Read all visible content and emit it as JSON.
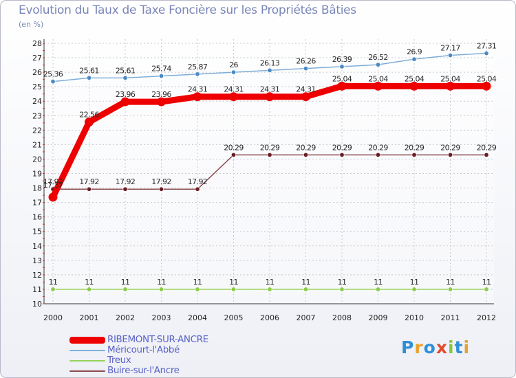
{
  "title": "Evolution du Taux de Taxe Foncière sur les Propriétés Bâties",
  "unit": "(en %)",
  "logo": {
    "letters": [
      "P",
      "r",
      "o",
      "x",
      "i",
      "t",
      "i"
    ],
    "colors": [
      "#2e8fd8",
      "#e9a12a",
      "#2e8fd8",
      "#e24a2c",
      "#8bc53f",
      "#2e8fd8",
      "#e9a12a"
    ]
  },
  "chart_data": {
    "type": "line",
    "title": "Evolution du Taux de Taxe Foncière sur les Propriétés Bâties",
    "ylabel": "(en %)",
    "xlabel": "",
    "categories": [
      "2000",
      "2001",
      "2002",
      "2003",
      "2004",
      "2005",
      "2006",
      "2007",
      "2008",
      "2009",
      "2010",
      "2011",
      "2012"
    ],
    "ylim": [
      10,
      28
    ],
    "yticks": [
      "10",
      "11",
      "12",
      "13",
      "14",
      "15",
      "16",
      "17",
      "18",
      "19",
      "20",
      "21",
      "22",
      "23",
      "24",
      "25",
      "26",
      "27",
      "28"
    ],
    "grid": true,
    "series": [
      {
        "name": "RIBEMONT-SUR-ANCRE",
        "color": "#ee0000",
        "thick": true,
        "values": [
          17.37,
          22.56,
          23.96,
          23.96,
          24.31,
          24.31,
          24.31,
          24.31,
          25.04,
          25.04,
          25.04,
          25.04,
          25.04
        ],
        "labels": [
          "",
          "22.56",
          "23.96",
          "23.96",
          "24.31",
          "24.31",
          "24.31",
          "24.31",
          "25.04",
          "25.04",
          "25.04",
          "25.04",
          "25.04"
        ]
      },
      {
        "name": "Méricourt-l'Abbé",
        "color": "#7eaed8",
        "marker": "#4c88c4",
        "values": [
          25.36,
          25.61,
          25.61,
          25.74,
          25.87,
          26,
          26.13,
          26.26,
          26.39,
          26.52,
          26.9,
          27.17,
          27.31
        ],
        "labels": [
          "25.36",
          "25.61",
          "25.61",
          "25.74",
          "25.87",
          "26",
          "26.13",
          "26.26",
          "26.39",
          "26.52",
          "26.9",
          "27.17",
          "27.31"
        ]
      },
      {
        "name": "Treux",
        "color": "#96d35a",
        "marker": "#8bcb4a",
        "values": [
          11,
          11,
          11,
          11,
          11,
          11,
          11,
          11,
          11,
          11,
          11,
          11,
          11
        ],
        "labels": [
          "11",
          "11",
          "11",
          "11",
          "11",
          "11",
          "11",
          "11",
          "11",
          "11",
          "11",
          "11",
          "11"
        ]
      },
      {
        "name": "Buire-sur-l'Ancre",
        "color": "#8a4a50",
        "marker": "#6b1d24",
        "values": [
          17.92,
          17.92,
          17.92,
          17.92,
          17.92,
          20.29,
          20.29,
          20.29,
          20.29,
          20.29,
          20.29,
          20.29,
          20.29
        ],
        "labels": [
          "17.92",
          "17.92",
          "17.92",
          "17.92",
          "17.92",
          "20.29",
          "20.29",
          "20.29",
          "20.29",
          "20.29",
          "20.29",
          "20.29",
          "20.29"
        ]
      }
    ],
    "extra_labels": [
      "17.37"
    ]
  }
}
